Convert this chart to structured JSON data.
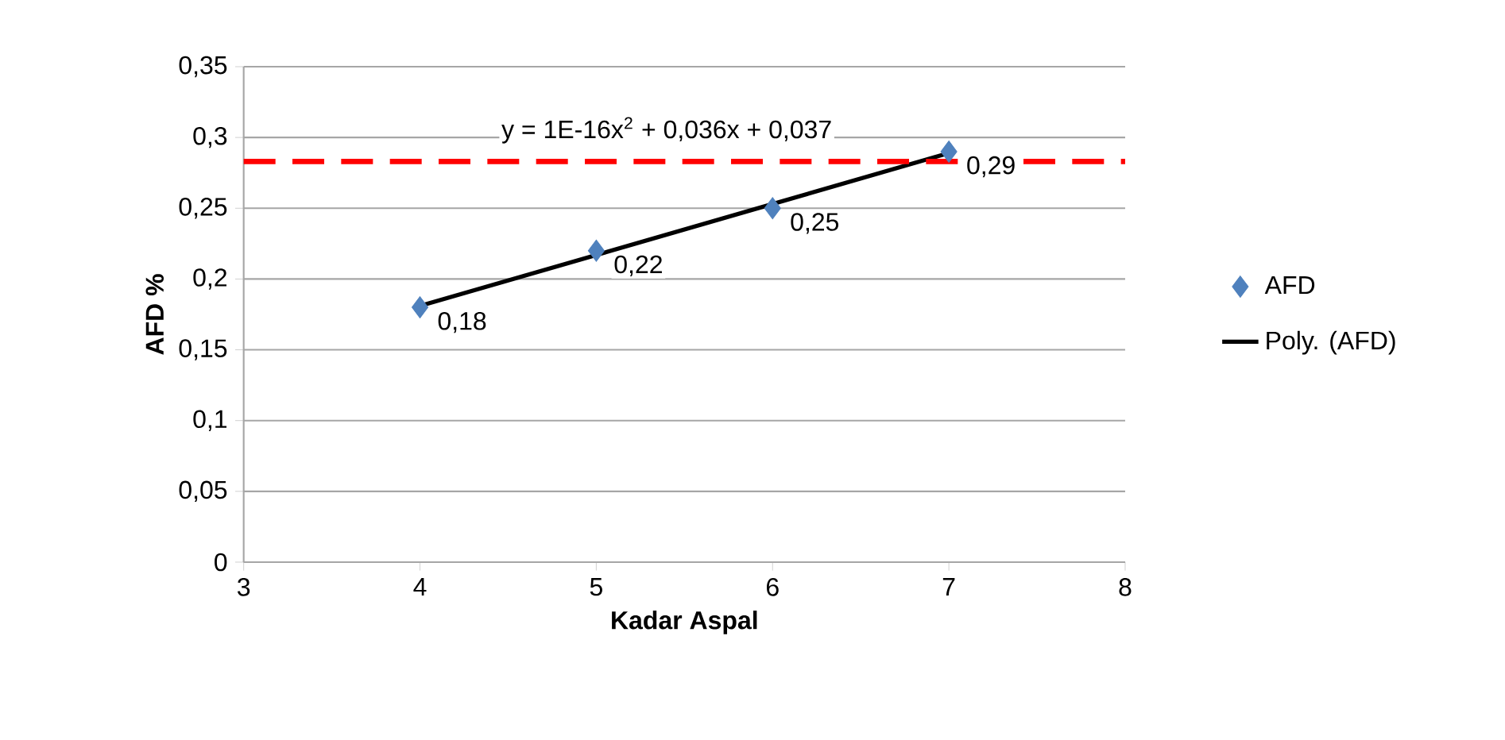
{
  "chart_data": {
    "type": "scatter",
    "xlabel": "Kadar Aspal",
    "ylabel": "AFD %",
    "xlim": [
      3,
      8
    ],
    "xticks": [
      3,
      4,
      5,
      6,
      7,
      8
    ],
    "ylim": [
      0,
      0.35
    ],
    "yticks": [
      {
        "value": 0,
        "label": "0"
      },
      {
        "value": 0.05,
        "label": "0,05"
      },
      {
        "value": 0.1,
        "label": "0,1"
      },
      {
        "value": 0.15,
        "label": "0,15"
      },
      {
        "value": 0.2,
        "label": "0,2"
      },
      {
        "value": 0.25,
        "label": "0,25"
      },
      {
        "value": 0.3,
        "label": "0,3"
      },
      {
        "value": 0.35,
        "label": "0,35"
      }
    ],
    "grid": "y",
    "legend": "right",
    "series": [
      {
        "name": "AFD",
        "marker": "diamond",
        "color": "#4f81bd",
        "x": [
          4,
          5,
          6,
          7
        ],
        "values": [
          0.18,
          0.22,
          0.25,
          0.29
        ],
        "value_labels": [
          "0,18",
          "0,22",
          "0,25",
          "0,29"
        ]
      },
      {
        "name": "Poly. (AFD)",
        "type": "line",
        "marker": "none",
        "line_style": "solid",
        "color": "#000000",
        "x": [
          4,
          7
        ],
        "values": [
          0.181,
          0.289
        ]
      }
    ],
    "ref_lines": [
      {
        "axis": "y",
        "value": 0.283,
        "color": "#ff0000",
        "line_style": "dashed"
      }
    ],
    "annotations": [
      "y = 1E-16x$^{2}$ + 0,036x + 0,037"
    ]
  }
}
